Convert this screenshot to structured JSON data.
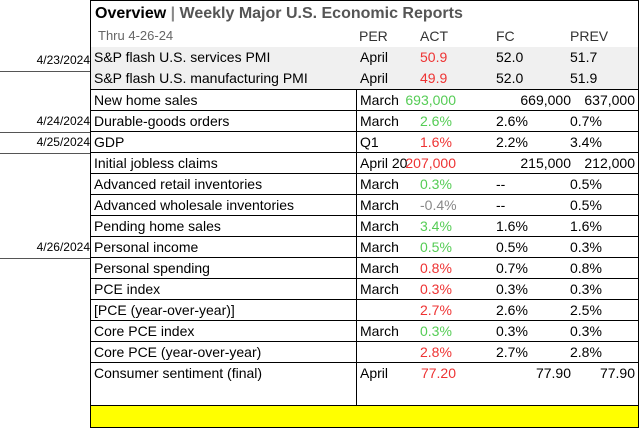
{
  "header": {
    "title_main": "Overview",
    "title_sep": " | ",
    "title_sub": "Weekly Major U.S. Economic Reports",
    "subtitle": "Thru 4-26-24",
    "col_per": "PER",
    "col_act": "ACT",
    "col_fc": "FC",
    "col_prev": "PREV"
  },
  "dates": [
    "4/23/2024",
    "4/24/2024",
    "4/25/2024",
    "4/26/2024"
  ],
  "colors": {
    "above": "#55cc55",
    "below": "#ee3333",
    "neutral": "#888888",
    "highlight": "#ffff00"
  },
  "rows": [
    {
      "name": "S&P flash U.S. services PMI",
      "per": "April",
      "act": "50.9",
      "fc": "52.0",
      "prev": "51.7"
    },
    {
      "name": "S&P flash U.S. manufacturing PMI",
      "per": "April",
      "act": "49.9",
      "fc": "52.0",
      "prev": "51.9"
    },
    {
      "name": "New home sales",
      "per": "March",
      "act": "693,000",
      "fc": "669,000",
      "prev": "637,000"
    },
    {
      "name": "Durable-goods orders",
      "per": "March",
      "act": "2.6%",
      "fc": "2.6%",
      "prev": "0.7%"
    },
    {
      "name": "GDP",
      "per": "Q1",
      "act": "1.6%",
      "fc": "2.2%",
      "prev": "3.4%"
    },
    {
      "name": "Initial jobless claims",
      "per": "April 20",
      "act": "207,000",
      "fc": "215,000",
      "prev": "212,000"
    },
    {
      "name": "Advanced retail inventories",
      "per": "March",
      "act": "0.3%",
      "fc": "--",
      "prev": "0.5%"
    },
    {
      "name": "Advanced wholesale inventories",
      "per": "March",
      "act": "-0.4%",
      "fc": "--",
      "prev": "0.5%"
    },
    {
      "name": "Pending home sales",
      "per": "March",
      "act": "3.4%",
      "fc": "1.6%",
      "prev": "1.6%"
    },
    {
      "name": "Personal income",
      "per": "March",
      "act": "0.5%",
      "fc": "0.5%",
      "prev": "0.3%"
    },
    {
      "name": "Personal spending",
      "per": "March",
      "act": "0.8%",
      "fc": "0.7%",
      "prev": "0.8%"
    },
    {
      "name": "PCE index",
      "per": "March",
      "act": "0.3%",
      "fc": "0.3%",
      "prev": "0.3%"
    },
    {
      "name": "[PCE (year-over-year)]",
      "per": "",
      "act": "2.7%",
      "fc": "2.6%",
      "prev": "2.5%"
    },
    {
      "name": "Core PCE index",
      "per": "March",
      "act": "0.3%",
      "fc": "0.3%",
      "prev": "0.3%"
    },
    {
      "name": "Core PCE (year-over-year)",
      "per": "",
      "act": "2.8%",
      "fc": "2.7%",
      "prev": "2.8%"
    },
    {
      "name": "Consumer sentiment (final)",
      "per": "April",
      "act": "77.20",
      "fc": "77.90",
      "prev": "77.90"
    }
  ]
}
